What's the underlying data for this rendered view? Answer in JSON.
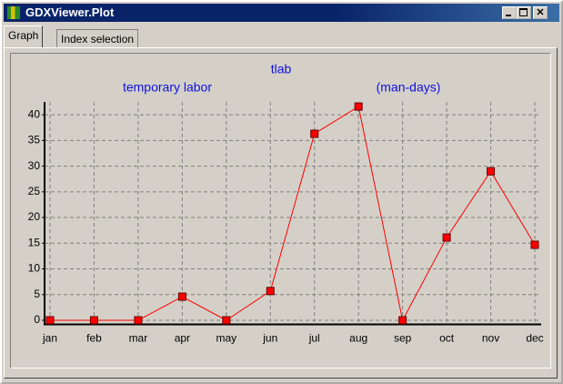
{
  "window": {
    "title": "GDXViewer.Plot",
    "tabs": [
      "Graph",
      "Index selection"
    ]
  },
  "chart_data": {
    "type": "line",
    "title": "tlab",
    "subtitle": "temporary labor",
    "unit_label": "(man-days)",
    "categories": [
      "jan",
      "feb",
      "mar",
      "apr",
      "may",
      "jun",
      "jul",
      "aug",
      "sep",
      "oct",
      "nov",
      "dec"
    ],
    "series": [
      {
        "name": "tlab",
        "color": "#ff0000",
        "values": [
          0,
          0,
          0,
          4.6,
          0,
          5.7,
          36.3,
          41.6,
          0,
          16.1,
          29.0,
          14.7
        ]
      }
    ],
    "ylim": [
      -0.8,
      42.5
    ],
    "yticks": [
      0,
      5,
      10,
      15,
      20,
      25,
      30,
      35,
      40
    ],
    "grid": true
  }
}
